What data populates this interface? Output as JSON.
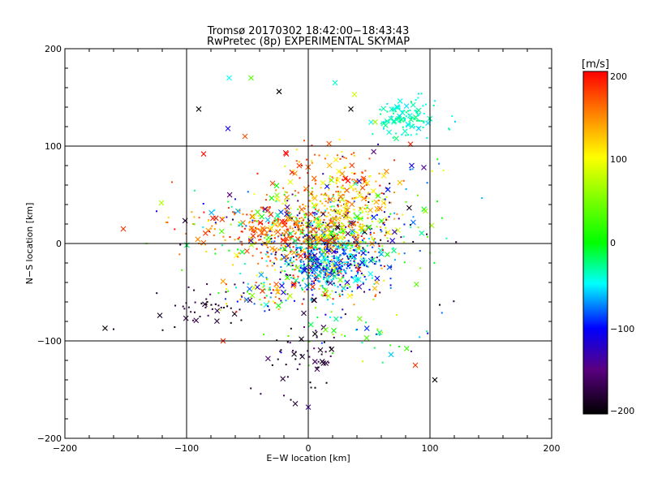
{
  "chart_data": {
    "type": "scatter",
    "title": "Tromsø 20170302 18:42:00−18:43:43",
    "subtitle": "RwPretec (8p) EXPERIMENTAL SKYMAP",
    "xlabel": "E−W location [km]",
    "ylabel": "N−S location [km]",
    "xlim": [
      -200,
      200
    ],
    "ylim": [
      -200,
      200
    ],
    "xticks": [
      -200,
      -100,
      0,
      100,
      200
    ],
    "yticks": [
      -200,
      -100,
      0,
      100,
      200
    ],
    "xtick_labels": [
      "−200",
      "−100",
      "0",
      "100",
      "200"
    ],
    "ytick_labels": [
      "−200",
      "−100",
      "0",
      "100",
      "200"
    ],
    "grid": true,
    "colorbar": {
      "label": "[m/s]",
      "range": [
        -200,
        200
      ],
      "ticks": [
        200,
        100,
        0,
        -100,
        -200
      ],
      "tick_labels": [
        "200",
        "100",
        "0",
        "−100",
        "−200"
      ],
      "colormap": "rainbow: black → purple → blue → cyan → green → yellow → red"
    },
    "markers": "small dots and x crosses, colored by Doppler velocity [m/s]",
    "clusters": [
      {
        "cx": 12,
        "cy": 0,
        "sx": 25,
        "sy": 28,
        "n": 700,
        "vmin": -200,
        "vmax": 200
      },
      {
        "cx": 20,
        "cy": -20,
        "sx": 18,
        "sy": 14,
        "n": 300,
        "vmin": -120,
        "vmax": -20
      },
      {
        "cx": -30,
        "cy": 10,
        "sx": 30,
        "sy": 14,
        "n": 220,
        "vmin": 130,
        "vmax": 200
      },
      {
        "cx": 30,
        "cy": 30,
        "sx": 18,
        "sy": 16,
        "n": 200,
        "vmin": 60,
        "vmax": 170
      },
      {
        "cx": 25,
        "cy": 65,
        "sx": 22,
        "sy": 18,
        "n": 110,
        "vmin": 100,
        "vmax": 200
      },
      {
        "cx": 80,
        "cy": 128,
        "sx": 14,
        "sy": 10,
        "n": 120,
        "vmin": -60,
        "vmax": -20
      },
      {
        "cx": -85,
        "cy": -65,
        "sx": 18,
        "sy": 12,
        "n": 45,
        "vmin": -200,
        "vmax": -160
      },
      {
        "cx": -5,
        "cy": -120,
        "sx": 16,
        "sy": 20,
        "n": 55,
        "vmin": -200,
        "vmax": -150
      },
      {
        "cx": -35,
        "cy": -50,
        "sx": 16,
        "sy": 10,
        "n": 70,
        "vmin": -140,
        "vmax": 200
      },
      {
        "cx": 30,
        "cy": -90,
        "sx": 35,
        "sy": 15,
        "n": 45,
        "vmin": -200,
        "vmax": 80
      },
      {
        "cx": -60,
        "cy": 20,
        "sx": 30,
        "sy": 25,
        "n": 90,
        "vmin": -200,
        "vmax": 200
      },
      {
        "cx": 80,
        "cy": 30,
        "sx": 22,
        "sy": 35,
        "n": 60,
        "vmin": -200,
        "vmax": 100
      }
    ],
    "points": [
      {
        "x": -167,
        "y": -87,
        "v": -200,
        "m": "x"
      },
      {
        "x": -152,
        "y": 15,
        "v": 180,
        "m": "x"
      },
      {
        "x": -90,
        "y": 138,
        "v": -200,
        "m": "x"
      },
      {
        "x": -86,
        "y": 92,
        "v": 200,
        "m": "x"
      },
      {
        "x": -65,
        "y": 170,
        "v": -50,
        "m": "x"
      },
      {
        "x": -47,
        "y": 170,
        "v": 30,
        "m": "x"
      },
      {
        "x": -24,
        "y": 156,
        "v": -200,
        "m": "x"
      },
      {
        "x": 22,
        "y": 165,
        "v": -40,
        "m": "x"
      },
      {
        "x": 38,
        "y": 153,
        "v": 80,
        "m": "x"
      },
      {
        "x": 35,
        "y": 138,
        "v": -200,
        "m": "x"
      },
      {
        "x": 84,
        "y": 102,
        "v": 190,
        "m": "x"
      },
      {
        "x": 85,
        "y": 80,
        "v": -110,
        "m": "x"
      },
      {
        "x": 95,
        "y": 78,
        "v": -140,
        "m": "x"
      },
      {
        "x": -66,
        "y": 118,
        "v": -110,
        "m": "x"
      },
      {
        "x": -52,
        "y": 110,
        "v": 170,
        "m": "x"
      },
      {
        "x": -18,
        "y": 92,
        "v": 200,
        "m": "x"
      },
      {
        "x": -70,
        "y": -100,
        "v": 190,
        "m": "x"
      },
      {
        "x": 104,
        "y": -140,
        "v": -200,
        "m": "x"
      },
      {
        "x": 0,
        "y": -168,
        "v": -140,
        "m": "x"
      },
      {
        "x": 88,
        "y": -125,
        "v": 180,
        "m": "x"
      },
      {
        "x": 68,
        "y": -114,
        "v": -60,
        "m": "x"
      },
      {
        "x": 48,
        "y": -97,
        "v": 30,
        "m": "x"
      },
      {
        "x": 108,
        "y": -63,
        "v": -200,
        "m": "dot"
      },
      {
        "x": -112,
        "y": 63,
        "v": 170,
        "m": "dot"
      },
      {
        "x": -160,
        "y": -88,
        "v": -180,
        "m": "dot"
      },
      {
        "x": 116,
        "y": 117,
        "v": -40,
        "m": "dot"
      }
    ]
  }
}
